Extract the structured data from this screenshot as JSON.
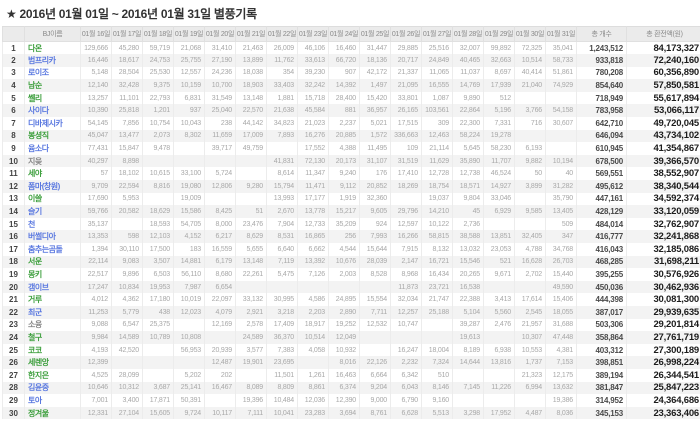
{
  "title": "★ 2016년 01월 01일 ~ 2016년 01월 31일 별풍기록",
  "colors": {
    "name_green": "#3fa03f",
    "name_blue": "#5b79e0",
    "name_gray": "#888888"
  },
  "table": {
    "headers": [
      "",
      "BJ이름",
      "01월 16일",
      "01월 17일",
      "01월 18일",
      "01월 19일",
      "01월 20일",
      "01월 21일",
      "01월 22일",
      "01월 23일",
      "01월 24일",
      "01월 25일",
      "01월 26일",
      "01월 27일",
      "01월 28일",
      "01월 29일",
      "01월 30일",
      "01월 31일",
      "총 개수",
      "총 환전액(원)"
    ],
    "rows": [
      {
        "rank": "1",
        "name": "다온",
        "color": "green",
        "days": [
          "129,666",
          "45,280",
          "59,719",
          "21,068",
          "31,410",
          "21,463",
          "26,009",
          "46,106",
          "16,460",
          "31,447",
          "29,885",
          "25,516",
          "32,007",
          "99,892",
          "72,325",
          "35,041"
        ],
        "total": "1,243,512",
        "cash": "84,173,327"
      },
      {
        "rank": "2",
        "name": "범프리카",
        "color": "blue",
        "days": [
          "16,446",
          "18,617",
          "24,753",
          "25,755",
          "27,190",
          "13,899",
          "11,762",
          "33,613",
          "66,720",
          "18,136",
          "20,717",
          "24,849",
          "40,465",
          "32,663",
          "10,514",
          "58,733"
        ],
        "total": "933,818",
        "cash": "72,240,160"
      },
      {
        "rank": "3",
        "name": "로이조",
        "color": "blue",
        "days": [
          "5,148",
          "28,504",
          "25,530",
          "12,557",
          "24,236",
          "18,038",
          "354",
          "39,230",
          "907",
          "42,172",
          "21,337",
          "11,065",
          "11,037",
          "8,697",
          "40,414",
          "51,861"
        ],
        "total": "780,208",
        "cash": "60,356,890"
      },
      {
        "rank": "4",
        "name": "남순",
        "color": "green",
        "days": [
          "12,140",
          "32,428",
          "9,375",
          "10,159",
          "10,700",
          "18,903",
          "33,403",
          "32,242",
          "14,392",
          "1,497",
          "21,095",
          "16,555",
          "14,769",
          "17,939",
          "21,040",
          "74,929"
        ],
        "total": "854,640",
        "cash": "57,850,581"
      },
      {
        "rank": "5",
        "name": "쎌리",
        "color": "green",
        "days": [
          "13,257",
          "11,101",
          "22,793",
          "6,831",
          "31,549",
          "13,148",
          "1,881",
          "15,718",
          "28,400",
          "15,420",
          "33,801",
          "1,087",
          "9,890",
          "512",
          "",
          ""
        ],
        "total": "718,949",
        "cash": "55,617,894"
      },
      {
        "rank": "6",
        "name": "사이다",
        "color": "blue",
        "days": [
          "10,390",
          "25,818",
          "1,201",
          "937",
          "25,040",
          "22,570",
          "21,638",
          "45,584",
          "881",
          "36,957",
          "26,165",
          "103,561",
          "22,864",
          "5,196",
          "3,766",
          "54,158"
        ],
        "total": "783,958",
        "cash": "53,066,117"
      },
      {
        "rank": "7",
        "name": "디바제시카",
        "color": "blue",
        "days": [
          "54,145",
          "7,856",
          "10,754",
          "10,043",
          "238",
          "44,142",
          "34,823",
          "21,023",
          "2,237",
          "5,021",
          "17,515",
          "309",
          "22,300",
          "7,331",
          "716",
          "30,607"
        ],
        "total": "642,710",
        "cash": "49,720,045"
      },
      {
        "rank": "8",
        "name": "봉셩직",
        "color": "green",
        "days": [
          "45,047",
          "13,477",
          "2,073",
          "8,302",
          "11,659",
          "17,009",
          "7,893",
          "16,276",
          "20,885",
          "1,572",
          "336,663",
          "12,463",
          "58,224",
          "19,278",
          "",
          ""
        ],
        "total": "646,094",
        "cash": "43,734,102"
      },
      {
        "rank": "9",
        "name": "윰소다",
        "color": "blue",
        "days": [
          "77,431",
          "15,847",
          "9,478",
          "",
          "39,717",
          "49,759",
          "",
          "17,552",
          "4,388",
          "11,495",
          "109",
          "21,114",
          "5,645",
          "58,230",
          "6,193",
          ""
        ],
        "total": "610,945",
        "cash": "41,354,867"
      },
      {
        "rank": "10",
        "name": "지읒",
        "color": "gray",
        "days": [
          "40,297",
          "8,898",
          "",
          "",
          "",
          "",
          "41,831",
          "72,130",
          "20,173",
          "31,107",
          "31,519",
          "11,629",
          "35,890",
          "11,707",
          "9,882",
          "10,194"
        ],
        "total": "678,500",
        "cash": "39,366,570"
      },
      {
        "rank": "11",
        "name": "세야",
        "color": "green",
        "days": [
          "57",
          "18,102",
          "10,615",
          "33,100",
          "5,724",
          "",
          "8,614",
          "11,347",
          "9,240",
          "176",
          "17,410",
          "12,728",
          "12,738",
          "46,524",
          "50",
          "40"
        ],
        "total": "569,551",
        "cash": "38,552,907"
      },
      {
        "rank": "12",
        "name": "폼마(창원)",
        "color": "blue",
        "days": [
          "9,709",
          "22,594",
          "8,816",
          "19,080",
          "12,806",
          "9,280",
          "15,794",
          "11,471",
          "9,112",
          "20,852",
          "18,269",
          "18,754",
          "18,571",
          "14,927",
          "3,899",
          "31,282"
        ],
        "total": "495,612",
        "cash": "38,340,544"
      },
      {
        "rank": "13",
        "name": "이쓸",
        "color": "green",
        "days": [
          "17,690",
          "5,953",
          "",
          "19,009",
          "",
          "",
          "13,993",
          "17,177",
          "1,919",
          "32,360",
          "",
          "19,037",
          "9,804",
          "33,046",
          "",
          "35,790"
        ],
        "total": "447,161",
        "cash": "34,592,374"
      },
      {
        "rank": "14",
        "name": "슬기",
        "color": "blue",
        "days": [
          "59,766",
          "20,582",
          "18,629",
          "15,586",
          "8,425",
          "51",
          "2,670",
          "13,778",
          "15,217",
          "9,605",
          "29,796",
          "14,210",
          "45",
          "6,929",
          "9,585",
          "13,405"
        ],
        "total": "428,129",
        "cash": "33,120,059"
      },
      {
        "rank": "15",
        "name": "천",
        "color": "blue",
        "days": [
          "35,137",
          "",
          "18,593",
          "54,705",
          "8,000",
          "23,476",
          "7,904",
          "12,733",
          "35,209",
          "924",
          "12,597",
          "10,122",
          "2,736",
          "",
          "",
          "509"
        ],
        "total": "484,014",
        "cash": "32,762,907"
      },
      {
        "rank": "16",
        "name": "버썰디아",
        "color": "blue",
        "days": [
          "13,353",
          "598",
          "12,103",
          "4,152",
          "6,217",
          "8,629",
          "8,531",
          "16,865",
          "256",
          "7,993",
          "16,266",
          "58,815",
          "38,588",
          "13,851",
          "32,405",
          "347"
        ],
        "total": "416,777",
        "cash": "32,241,868"
      },
      {
        "rank": "17",
        "name": "춤추는곰돌",
        "color": "blue",
        "days": [
          "1,394",
          "30,110",
          "17,500",
          "183",
          "16,559",
          "5,655",
          "6,640",
          "6,662",
          "4,544",
          "15,644",
          "7,915",
          "8,132",
          "13,032",
          "23,053",
          "4,788",
          "34,768"
        ],
        "total": "416,043",
        "cash": "32,185,086"
      },
      {
        "rank": "18",
        "name": "서운",
        "color": "green",
        "days": [
          "22,114",
          "9,083",
          "3,507",
          "14,881",
          "6,179",
          "13,148",
          "7,119",
          "13,392",
          "10,676",
          "28,039",
          "2,147",
          "16,721",
          "15,546",
          "521",
          "16,628",
          "26,703"
        ],
        "total": "468,285",
        "cash": "31,698,211"
      },
      {
        "rank": "19",
        "name": "몽키",
        "color": "green",
        "days": [
          "22,517",
          "9,896",
          "6,503",
          "56,110",
          "8,680",
          "22,261",
          "5,475",
          "7,126",
          "2,003",
          "8,528",
          "8,968",
          "16,434",
          "20,265",
          "9,671",
          "2,702",
          "15,440"
        ],
        "total": "395,255",
        "cash": "30,576,926"
      },
      {
        "rank": "20",
        "name": "갬이브",
        "color": "blue",
        "days": [
          "17,247",
          "10,834",
          "19,953",
          "7,987",
          "6,654",
          "",
          "",
          "",
          "",
          "",
          "11,873",
          "23,721",
          "16,538",
          "",
          "",
          "49,590"
        ],
        "total": "450,036",
        "cash": "30,462,936"
      },
      {
        "rank": "21",
        "name": "거루",
        "color": "green",
        "days": [
          "4,012",
          "4,362",
          "17,180",
          "10,019",
          "22,097",
          "33,132",
          "30,995",
          "4,586",
          "24,895",
          "15,554",
          "32,034",
          "21,747",
          "22,388",
          "3,413",
          "17,614",
          "15,406"
        ],
        "total": "444,398",
        "cash": "30,081,300"
      },
      {
        "rank": "22",
        "name": "최군",
        "color": "blue",
        "days": [
          "11,253",
          "5,779",
          "438",
          "12,023",
          "4,079",
          "2,921",
          "3,218",
          "2,203",
          "2,890",
          "7,711",
          "12,257",
          "25,188",
          "5,104",
          "5,560",
          "2,545",
          "18,055"
        ],
        "total": "387,017",
        "cash": "29,939,635"
      },
      {
        "rank": "23",
        "name": "소융",
        "color": "gray",
        "days": [
          "9,088",
          "6,547",
          "25,375",
          "",
          "12,169",
          "2,578",
          "17,409",
          "18,917",
          "19,252",
          "12,532",
          "10,747",
          "",
          "39,287",
          "2,476",
          "21,957",
          "31,688"
        ],
        "total": "503,306",
        "cash": "29,201,814"
      },
      {
        "rank": "24",
        "name": "철구",
        "color": "green",
        "days": [
          "9,984",
          "14,589",
          "10,789",
          "10,808",
          "",
          "24,589",
          "36,370",
          "10,514",
          "12,049",
          "",
          "",
          "",
          "19,613",
          "",
          "10,307",
          "47,448"
        ],
        "total": "358,864",
        "cash": "27,761,719"
      },
      {
        "rank": "25",
        "name": "코코",
        "color": "green",
        "days": [
          "4,193",
          "42,520",
          "",
          "56,953",
          "20,939",
          "3,577",
          "7,383",
          "4,058",
          "10,932",
          "",
          "16,247",
          "18,004",
          "8,189",
          "6,938",
          "10,553",
          "4,381"
        ],
        "total": "403,312",
        "cash": "27,300,189"
      },
      {
        "rank": "26",
        "name": "세렌앙",
        "color": "green",
        "days": [
          "12,399",
          "",
          "",
          "",
          "12,487",
          "19,901",
          "23,695",
          "",
          "8,016",
          "22,126",
          "2,232",
          "7,324",
          "14,644",
          "13,816",
          "1,737",
          "7,153"
        ],
        "total": "398,851",
        "cash": "26,998,224"
      },
      {
        "rank": "27",
        "name": "한지은",
        "color": "green",
        "days": [
          "4,525",
          "28,099",
          "",
          "5,202",
          "202",
          "",
          "11,501",
          "1,261",
          "16,463",
          "6,664",
          "6,342",
          "510",
          "",
          "",
          "21,323",
          "12,175"
        ],
        "total": "389,194",
        "cash": "26,344,541"
      },
      {
        "rank": "28",
        "name": "김윤중",
        "color": "blue",
        "days": [
          "10,646",
          "10,312",
          "3,687",
          "25,141",
          "16,467",
          "8,089",
          "8,809",
          "8,861",
          "6,374",
          "9,204",
          "6,043",
          "8,146",
          "7,145",
          "11,226",
          "6,994",
          "13,632"
        ],
        "total": "381,847",
        "cash": "25,847,223"
      },
      {
        "rank": "29",
        "name": "토아",
        "color": "blue",
        "days": [
          "7,001",
          "3,400",
          "17,871",
          "50,391",
          "",
          "19,396",
          "10,484",
          "12,036",
          "12,390",
          "9,000",
          "6,790",
          "9,160",
          "",
          "",
          "",
          "19,386"
        ],
        "total": "314,952",
        "cash": "24,364,686"
      },
      {
        "rank": "30",
        "name": "정겨울",
        "color": "green",
        "days": [
          "12,331",
          "27,104",
          "15,605",
          "9,724",
          "10,117",
          "7,111",
          "10,041",
          "23,283",
          "3,694",
          "8,761",
          "6,628",
          "5,513",
          "3,298",
          "17,952",
          "4,487",
          "8,036"
        ],
        "total": "345,153",
        "cash": "23,363,406"
      }
    ]
  }
}
